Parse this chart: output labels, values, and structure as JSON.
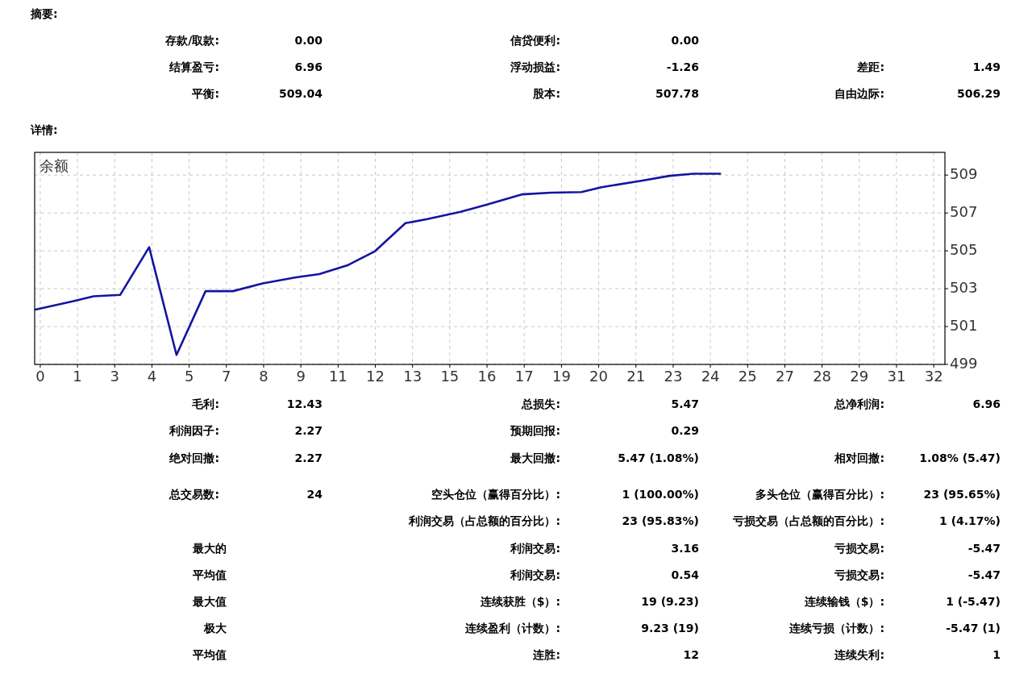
{
  "chart_data": [
    {
      "type": "other",
      "title": "摘要:",
      "annotations": [
        "存款/取款:",
        "0.00",
        "信贷便利:",
        "0.00",
        "结算盈亏:",
        "6.96",
        "浮动损益:",
        "-1.26",
        "差距:",
        "1.49",
        "平衡:",
        "509.04",
        "股本:",
        "507.78",
        "自由边际:",
        "506.29"
      ]
    },
    {
      "type": "line",
      "title": "详情:",
      "annotations": [
        "余额"
      ],
      "grid": true,
      "xlim": [
        -0.2,
        32.4
      ],
      "ylim": [
        499,
        510.2
      ],
      "xticks": [
        0,
        {
          "value": 1.333,
          "label": "1"
        },
        {
          "value": 2.667,
          "label": "3"
        },
        4,
        {
          "value": 5.333,
          "label": "5"
        },
        {
          "value": 6.667,
          "label": "7"
        },
        8,
        {
          "value": 9.333,
          "label": "9"
        },
        {
          "value": 10.667,
          "label": "11"
        },
        12,
        {
          "value": 13.333,
          "label": "13"
        },
        {
          "value": 14.667,
          "label": "15"
        },
        16,
        {
          "value": 17.333,
          "label": "17"
        },
        {
          "value": 18.667,
          "label": "19"
        },
        20,
        {
          "value": 21.333,
          "label": "21"
        },
        {
          "value": 22.667,
          "label": "23"
        },
        24,
        {
          "value": 25.333,
          "label": "25"
        },
        {
          "value": 26.667,
          "label": "27"
        },
        28,
        {
          "value": 29.333,
          "label": "29"
        },
        {
          "value": 30.667,
          "label": "31"
        },
        32
      ],
      "yticks": [
        499,
        501,
        503,
        505,
        507,
        509
      ],
      "series": [
        {
          "color": "#1414a0",
          "x": [
            -0.17,
            1.16,
            1.91,
            2.86,
            3.9,
            4.88,
            5.92,
            6.9,
            7.97,
            9.16,
            9.99,
            11.03,
            11.99,
            13.08,
            13.86,
            15.05,
            16.0,
            17.24,
            18.28,
            19.38,
            20.1,
            21.57,
            22.53,
            23.39,
            24.35
          ],
          "values": [
            501.9,
            502.33,
            502.6,
            502.67,
            505.19,
            499.5,
            502.87,
            502.87,
            503.28,
            503.6,
            503.77,
            504.25,
            504.98,
            506.46,
            506.68,
            507.06,
            507.44,
            507.98,
            508.07,
            508.1,
            508.36,
            508.71,
            508.96,
            509.07,
            509.07
          ]
        }
      ]
    },
    {
      "type": "other",
      "annotations": [
        "毛利:",
        "12.43",
        "总损失:",
        "5.47",
        "总净利润:",
        "6.96",
        "利润因子:",
        "2.27",
        "预期回报:",
        "0.29",
        "绝对回撤:",
        "2.27",
        "最大回撤:",
        "5.47 (1.08%)",
        "相对回撤:",
        "1.08% (5.47)",
        "总交易数:",
        "24",
        "空头仓位（赢得百分比）:",
        "1 (100.00%)",
        "多头仓位（赢得百分比）:",
        "23 (95.65%)",
        "利润交易（占总额的百分比）:",
        "23 (95.83%)",
        "亏损交易（占总额的百分比）:",
        "1 (4.17%)",
        "最大的",
        "利润交易:",
        "3.16",
        "亏损交易:",
        "-5.47",
        "平均值",
        "利润交易:",
        "0.54",
        "亏损交易:",
        "-5.47",
        "最大值",
        "连续获胜（$）:",
        "19 (9.23)",
        "连续输钱（$）:",
        "1 (-5.47)",
        "极大",
        "连续盈利（计数）:",
        "9.23 (19)",
        "连续亏损（计数）:",
        "-5.47 (1)",
        "平均值",
        "连胜:",
        "12",
        "连续失利:",
        "1"
      ]
    }
  ]
}
